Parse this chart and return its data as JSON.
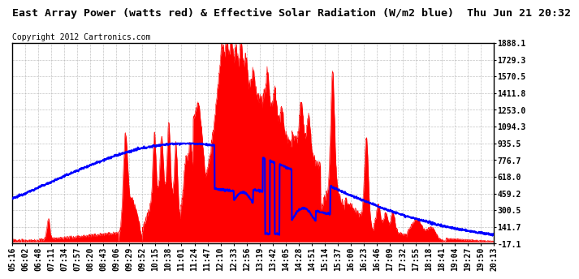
{
  "title": "East Array Power (watts red) & Effective Solar Radiation (W/m2 blue)  Thu Jun 21 20:32",
  "copyright": "Copyright 2012 Cartronics.com",
  "background_color": "#ffffff",
  "plot_bg_color": "#ffffff",
  "grid_color": "#aaaaaa",
  "yticks": [
    1888.1,
    1729.3,
    1570.5,
    1411.8,
    1253.0,
    1094.3,
    935.5,
    776.7,
    618.0,
    459.2,
    300.5,
    141.7,
    -17.1
  ],
  "ymin": -17.1,
  "ymax": 1888.1,
  "x_labels": [
    "05:16",
    "06:02",
    "06:48",
    "07:11",
    "07:34",
    "07:57",
    "08:20",
    "08:43",
    "09:06",
    "09:29",
    "09:52",
    "10:15",
    "10:38",
    "11:01",
    "11:24",
    "11:47",
    "12:10",
    "12:33",
    "12:56",
    "13:19",
    "13:42",
    "14:05",
    "14:28",
    "14:51",
    "15:14",
    "15:37",
    "16:00",
    "16:23",
    "16:46",
    "17:09",
    "17:32",
    "17:55",
    "18:18",
    "18:41",
    "19:04",
    "19:27",
    "19:50",
    "20:13"
  ],
  "red_color": "#ff0000",
  "blue_color": "#0000ff",
  "title_fontsize": 9.5,
  "copyright_fontsize": 7,
  "tick_fontsize": 7
}
